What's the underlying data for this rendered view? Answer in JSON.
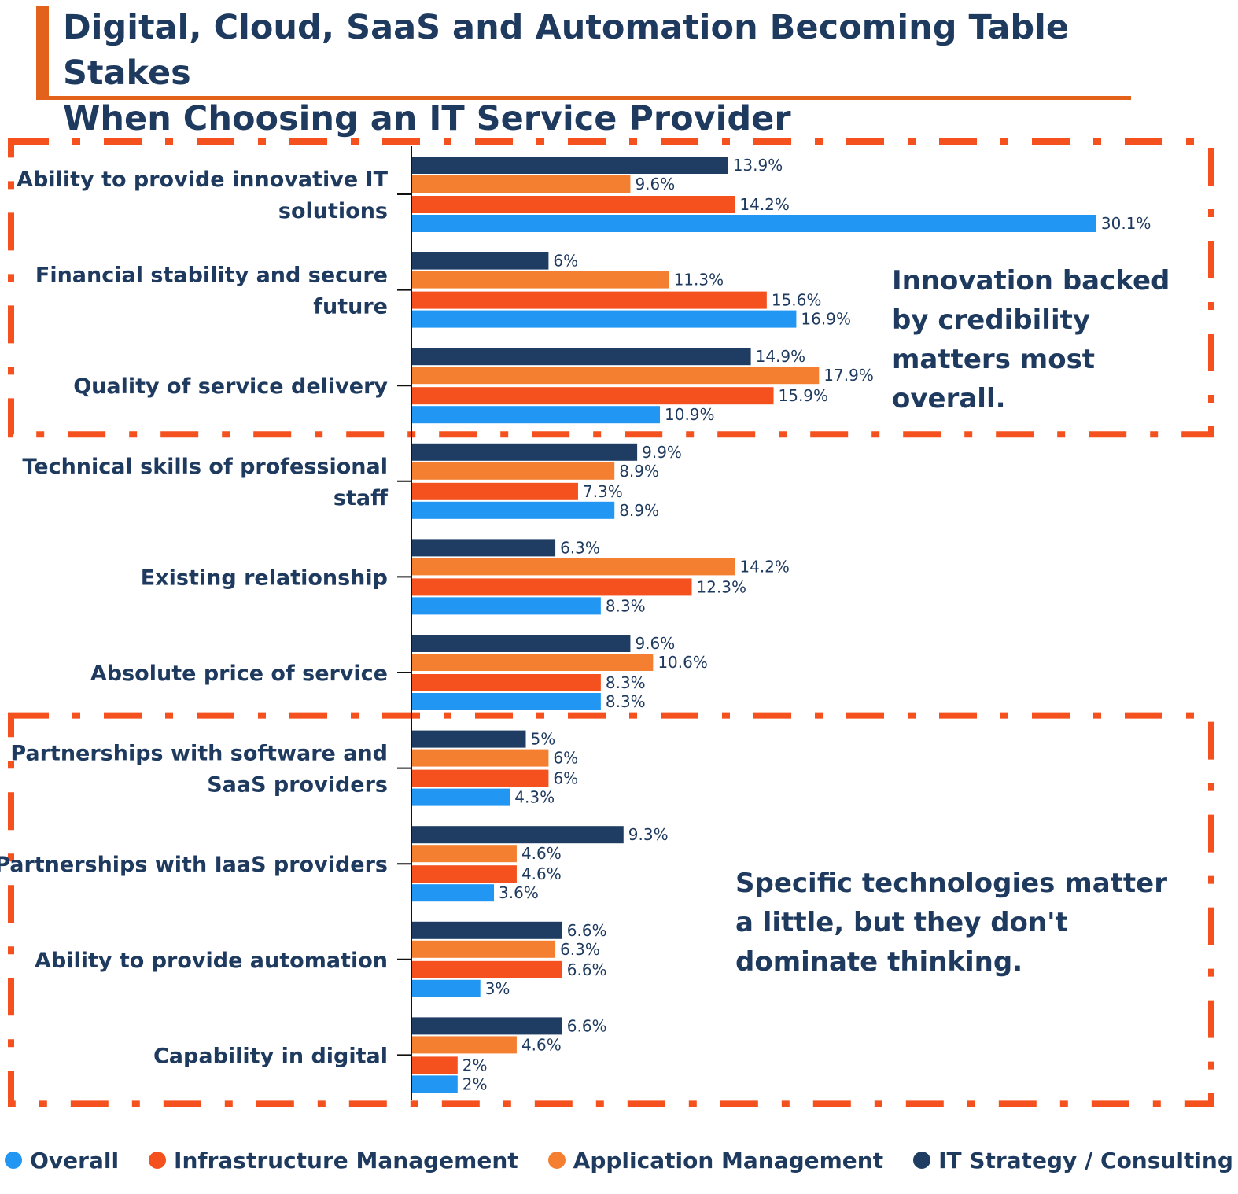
{
  "title_lines": [
    "Digital, Cloud, SaaS and Automation Becoming Table Stakes",
    "When Choosing an IT Service Provider"
  ],
  "callouts": [
    "Innovation backed by credibility matters most overall.",
    "Specific technologies matter a little, but they don't dominate thinking."
  ],
  "colors": {
    "accent": "#e2621b",
    "text": "#1f3a5f",
    "box_border": "#f4511e"
  },
  "chart_data": {
    "type": "bar",
    "orientation": "horizontal",
    "categories": [
      "Ability to provide innovative IT solutions",
      "Financial stability and secure future",
      "Quality of service delivery",
      "Technical skills of professional staff",
      "Existing relationship",
      "Absolute price of service",
      "Partnerships with software and SaaS providers",
      "Partnerships with IaaS providers",
      "Ability to provide automation",
      "Capability in digital"
    ],
    "category_lines": [
      [
        "Ability to provide innovative IT",
        "solutions"
      ],
      [
        "Financial stability and secure",
        "future"
      ],
      [
        "Quality of service delivery"
      ],
      [
        "Technical skills of professional",
        "staff"
      ],
      [
        "Existing relationship"
      ],
      [
        "Absolute price of service"
      ],
      [
        "Partnerships with software and",
        "SaaS providers"
      ],
      [
        "Partnerships with IaaS providers"
      ],
      [
        "Ability to provide automation"
      ],
      [
        "Capability in digital"
      ]
    ],
    "series": [
      {
        "name": "IT Strategy / Consulting",
        "color": "#1f3d63",
        "values": [
          13.9,
          6,
          14.9,
          9.9,
          6.3,
          9.6,
          5,
          9.3,
          6.6,
          6.6
        ],
        "labels": [
          "13.9%",
          "6%",
          "14.9%",
          "9.9%",
          "6.3%",
          "9.6%",
          "5%",
          "9.3%",
          "6.6%",
          "6.6%"
        ]
      },
      {
        "name": "Application Management",
        "color": "#f47f31",
        "values": [
          9.6,
          11.3,
          17.9,
          8.9,
          14.2,
          10.6,
          6,
          4.6,
          6.3,
          4.6
        ],
        "labels": [
          "9.6%",
          "11.3%",
          "17.9%",
          "8.9%",
          "14.2%",
          "10.6%",
          "6%",
          "4.6%",
          "6.3%",
          "4.6%"
        ]
      },
      {
        "name": "Infrastructure Management",
        "color": "#f4511e",
        "values": [
          14.2,
          15.6,
          15.9,
          7.3,
          12.3,
          8.3,
          6,
          4.6,
          6.6,
          2
        ],
        "labels": [
          "14.2%",
          "15.6%",
          "15.9%",
          "7.3%",
          "12.3%",
          "8.3%",
          "6%",
          "4.6%",
          "6.6%",
          "2%"
        ]
      },
      {
        "name": "Overall",
        "color": "#2196f3",
        "values": [
          30.1,
          16.9,
          10.9,
          8.9,
          8.3,
          8.3,
          4.3,
          3.6,
          3,
          2
        ],
        "labels": [
          "30.1%",
          "16.9%",
          "10.9%",
          "8.9%",
          "8.3%",
          "8.3%",
          "4.3%",
          "3.6%",
          "3%",
          "2%"
        ]
      }
    ],
    "legend": [
      {
        "name": "Overall",
        "color": "#2196f3"
      },
      {
        "name": "Infrastructure Management",
        "color": "#f4511e"
      },
      {
        "name": "Application Management",
        "color": "#f47f31"
      },
      {
        "name": "IT Strategy / Consulting",
        "color": "#1f3d63"
      }
    ],
    "legend_position": "bottom",
    "highlight_groups": [
      [
        0,
        1,
        2
      ],
      [
        6,
        7,
        8,
        9
      ]
    ],
    "xlim": [
      0,
      31
    ],
    "grid": false
  }
}
